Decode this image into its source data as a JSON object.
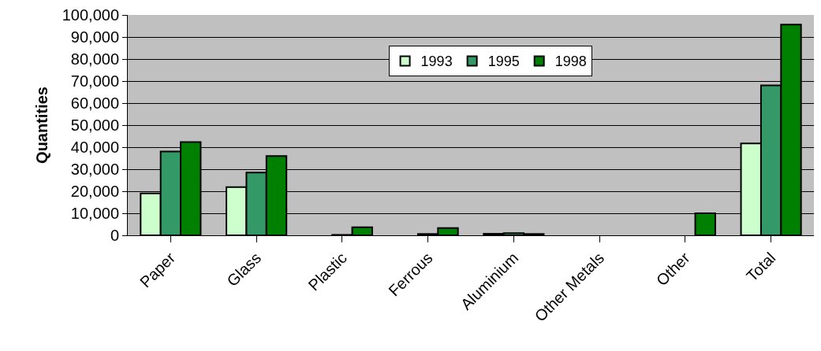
{
  "chart_data": {
    "type": "bar",
    "ylabel": "Quantities",
    "categories": [
      "Paper",
      "Glass",
      "Plastic",
      "Ferrous",
      "Aluminium",
      "Other Metals",
      "Other",
      "Total"
    ],
    "series": [
      {
        "name": "1993",
        "color": "#ccffcc",
        "values": [
          19000,
          21900,
          null,
          null,
          700,
          0,
          0,
          41700
        ]
      },
      {
        "name": "1995",
        "color": "#339966",
        "values": [
          38000,
          28500,
          200,
          600,
          1000,
          0,
          0,
          68000
        ]
      },
      {
        "name": "1998",
        "color": "#008000",
        "values": [
          42300,
          36000,
          3700,
          3300,
          600,
          0,
          10000,
          95600
        ]
      }
    ],
    "ylim": [
      0,
      100000
    ],
    "yticks": [
      {
        "value": 0,
        "label": "0"
      },
      {
        "value": 10000,
        "label": "10,000"
      },
      {
        "value": 20000,
        "label": "20,000"
      },
      {
        "value": 30000,
        "label": "30,000"
      },
      {
        "value": 40000,
        "label": "40,000"
      },
      {
        "value": 50000,
        "label": "50,000"
      },
      {
        "value": 60000,
        "label": "60,000"
      },
      {
        "value": 70000,
        "label": "70,000"
      },
      {
        "value": 80000,
        "label": "80,000"
      },
      {
        "value": 90000,
        "label": "90,000"
      },
      {
        "value": 100000,
        "label": "100,000"
      }
    ],
    "grid": "y",
    "legend": "top"
  }
}
